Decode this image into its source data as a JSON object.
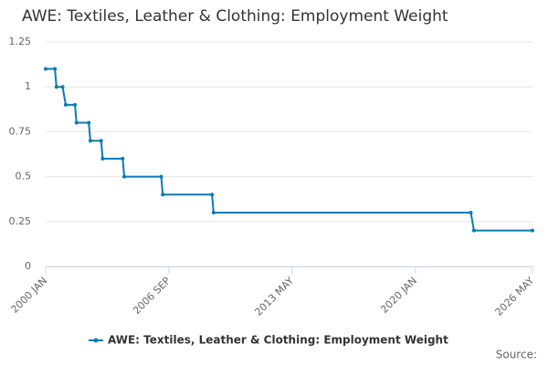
{
  "chart_data": {
    "type": "line",
    "title": "AWE: Textiles, Leather & Clothing: Employment Weight",
    "x": [
      "2000 JAN",
      "2000 JUL",
      "2000 AUG",
      "2000 DEC",
      "2001 FEB",
      "2001 AUG",
      "2001 SEP",
      "2002 MAY",
      "2002 JUN",
      "2003 JAN",
      "2003 FEB",
      "2004 MAR",
      "2004 APR",
      "2006 APR",
      "2006 MAY",
      "2009 JAN",
      "2009 FEB",
      "2023 JAN",
      "2023 MAR",
      "2026 MAY"
    ],
    "series": [
      {
        "name": "AWE: Textiles, Leather & Clothing: Employment Weight",
        "color": "#0b7bb5",
        "values": [
          1.1,
          1.1,
          1.0,
          1.0,
          0.9,
          0.9,
          0.8,
          0.8,
          0.7,
          0.7,
          0.6,
          0.6,
          0.5,
          0.5,
          0.4,
          0.4,
          0.3,
          0.3,
          0.2,
          0.2
        ]
      }
    ],
    "ylim": [
      0,
      1.25
    ],
    "yticks": [
      0,
      0.25,
      0.5,
      0.75,
      1,
      1.25
    ],
    "xlim": [
      "2000 JAN",
      "2026 MAY"
    ],
    "xticks": [
      "2000 JAN",
      "2006 SEP",
      "2013 MAY",
      "2020 JAN",
      "2026 MAY"
    ],
    "grid": true,
    "legend": "bottom",
    "source": "Source:"
  }
}
